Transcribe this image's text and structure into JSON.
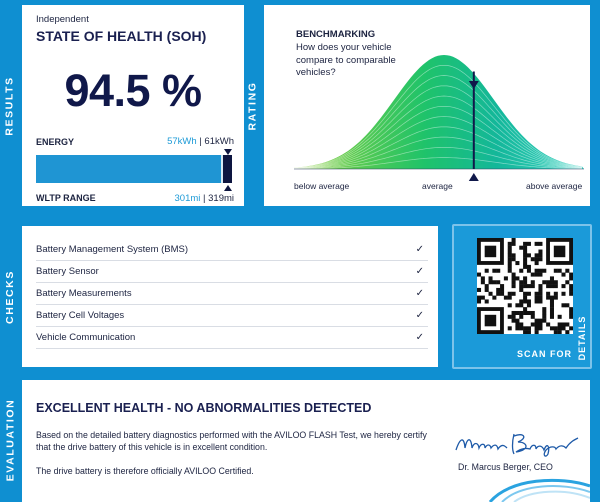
{
  "side_labels": {
    "results": "RESULTS",
    "rating": "RATING",
    "checks": "CHECKS",
    "evaluation": "EVALUATION"
  },
  "results": {
    "subtitle": "Independent",
    "title": "STATE OF HEALTH (SOH)",
    "soh_value": "94.5 %",
    "soh_percent": 94.5,
    "energy_label": "ENERGY",
    "energy_current": "57kWh",
    "energy_separator": " | ",
    "energy_original": "61kWh",
    "range_label": "WLTP RANGE",
    "range_current": "301mi",
    "range_separator": " | ",
    "range_original": "319mi"
  },
  "rating": {
    "title": "BENCHMARKING",
    "question": "How does your vehicle compare to comparable vehicles?",
    "scale_low": "below average",
    "scale_mid": "average",
    "scale_high": "above average",
    "marker_percentile": 0.62
  },
  "checks": {
    "items": [
      {
        "label": "Battery Management System (BMS)",
        "status": "✓"
      },
      {
        "label": "Battery Sensor",
        "status": "✓"
      },
      {
        "label": "Battery Measurements",
        "status": "✓"
      },
      {
        "label": "Battery Cell Voltages",
        "status": "✓"
      },
      {
        "label": "Vehicle Communication",
        "status": "✓"
      }
    ]
  },
  "qr": {
    "scan_label": "SCAN FOR",
    "details_label": "DETAILS",
    "icon": "qr-code-icon"
  },
  "evaluation": {
    "title": "EXCELLENT HEALTH - NO ABNORMALITIES DETECTED",
    "paragraph1": "Based on the detailed battery diagnostics performed with the AVILOO FLASH Test, we hereby certify that the drive battery of this vehicle is in excellent condition.",
    "paragraph2": "The drive battery is therefore officially AVILOO Certified.",
    "signature_text": "Marcus Berger",
    "signer": "Dr. Marcus Berger, CEO"
  },
  "colors": {
    "brand_blue": "#0f8fd1",
    "navy": "#10184a",
    "accent": "#1e9bd7"
  }
}
